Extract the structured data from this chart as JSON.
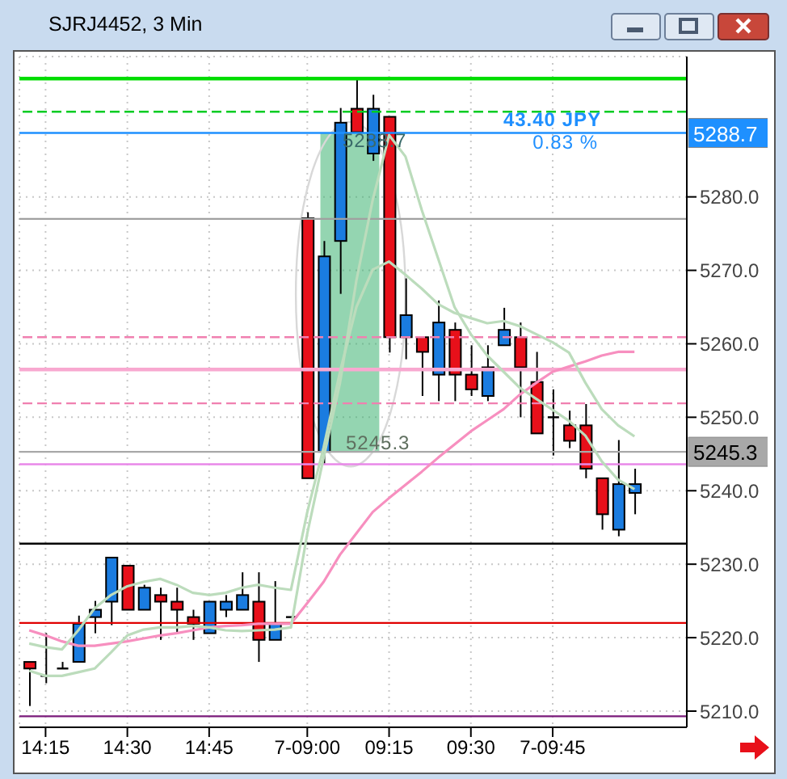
{
  "chart_data": {
    "type": "candlestick",
    "title": "SJRJ4452, 3 Min",
    "categories": [
      null,
      "14:15",
      null,
      null,
      null,
      null,
      "14:30",
      null,
      null,
      null,
      null,
      "14:45",
      null,
      null,
      null,
      null,
      null,
      "7-09:00",
      null,
      null,
      null,
      null,
      "09:15",
      null,
      null,
      null,
      null,
      "09:30",
      null,
      null,
      null,
      null,
      "7-09:45",
      null,
      null,
      null,
      null,
      null
    ],
    "ohlc": [
      [
        5216.7,
        5216.7,
        5210.7,
        5215.8
      ],
      [
        5214.8,
        5220.6,
        5213.8,
        5214.8
      ],
      [
        5215.8,
        5216.7,
        5215.8,
        5215.8
      ],
      [
        5216.7,
        5223.0,
        5216.7,
        5221.9
      ],
      [
        5222.8,
        5225.0,
        5220.6,
        5223.8
      ],
      [
        5224.9,
        5230.9,
        5221.7,
        5230.9
      ],
      [
        5229.8,
        5229.8,
        5223.8,
        5223.8
      ],
      [
        5223.8,
        5227.2,
        5223.8,
        5226.8
      ],
      [
        5225.8,
        5226.8,
        5219.7,
        5224.9
      ],
      [
        5224.9,
        5226.8,
        5220.6,
        5223.8
      ],
      [
        5222.8,
        5223.8,
        5219.7,
        5221.9
      ],
      [
        5220.6,
        5224.9,
        5220.6,
        5224.9
      ],
      [
        5223.8,
        5225.8,
        5222.8,
        5224.9
      ],
      [
        5223.8,
        5228.9,
        5223.8,
        5225.8
      ],
      [
        5224.9,
        5228.9,
        5216.7,
        5219.7
      ],
      [
        5219.7,
        5227.7,
        5219.7,
        5221.9
      ],
      [
        5222.8,
        5222.8,
        5222.8,
        5222.8
      ],
      [
        5277.1,
        5277.9,
        5241.7,
        5241.7
      ],
      [
        5245.3,
        5274.0,
        5243.7,
        5271.9
      ],
      [
        5274.0,
        5292.1,
        5266.8,
        5290.1
      ],
      [
        5292.0,
        5296.0,
        5288.8,
        5288.8
      ],
      [
        5285.9,
        5293.9,
        5284.9,
        5292.0
      ],
      [
        5290.9,
        5290.9,
        5258.8,
        5260.9
      ],
      [
        5260.9,
        5268.9,
        5257.9,
        5263.9
      ],
      [
        5260.9,
        5260.9,
        5252.9,
        5258.9
      ],
      [
        5255.8,
        5265.9,
        5252.2,
        5262.9
      ],
      [
        5261.9,
        5262.9,
        5252.2,
        5255.8
      ],
      [
        5255.8,
        5259.8,
        5252.9,
        5253.8
      ],
      [
        5252.9,
        5259.8,
        5252.2,
        5256.8
      ],
      [
        5259.8,
        5264.9,
        5259.8,
        5261.9
      ],
      [
        5260.9,
        5262.9,
        5250.0,
        5256.8
      ],
      [
        5254.8,
        5258.9,
        5247.8,
        5247.8
      ],
      [
        5250.0,
        5253.8,
        5244.8,
        5250.0
      ],
      [
        5248.9,
        5250.9,
        5245.8,
        5246.8
      ],
      [
        5248.9,
        5251.8,
        5241.7,
        5243.0
      ],
      [
        5241.7,
        5241.7,
        5234.7,
        5236.8
      ],
      [
        5234.7,
        5246.9,
        5233.8,
        5240.9
      ],
      [
        5239.7,
        5243.0,
        5236.8,
        5240.9
      ]
    ],
    "colors": [
      "#e8101a",
      "#000000",
      "#000000",
      "#1a7ce0",
      "#1a7ce0",
      "#1a7ce0",
      "#e8101a",
      "#1a7ce0",
      "#e8101a",
      "#e8101a",
      "#e8101a",
      "#1a7ce0",
      "#1a7ce0",
      "#1a7ce0",
      "#e8101a",
      "#1a7ce0",
      "#000000",
      "#e8101a",
      "#1a7ce0",
      "#1a7ce0",
      "#e8101a",
      "#1a7ce0",
      "#e8101a",
      "#1a7ce0",
      "#e8101a",
      "#1a7ce0",
      "#e8101a",
      "#e8101a",
      "#1a7ce0",
      "#1a7ce0",
      "#e8101a",
      "#e8101a",
      "#000000",
      "#e8101a",
      "#e8101a",
      "#e8101a",
      "#1a7ce0",
      "#1a7ce0"
    ],
    "series": [
      {
        "type": "line",
        "color": "#f78fbf",
        "values": [
          5221.0,
          5220.3,
          5219.5,
          5218.9,
          5218.9,
          5219.2,
          5219.5,
          5219.9,
          5220.3,
          5220.6,
          5221.0,
          5221.4,
          5221.6,
          5221.7,
          5221.9,
          5221.9,
          5221.9,
          5224.7,
          5227.6,
          5231.3,
          5234.2,
          5237.1,
          5239.0,
          5240.8,
          5242.6,
          5244.5,
          5246.3,
          5248.1,
          5249.6,
          5251.1,
          5253.1,
          5254.7,
          5256.2,
          5256.9,
          5257.6,
          5258.4,
          5258.9,
          5258.9
        ]
      },
      {
        "type": "line",
        "color": "#bcdcbc",
        "values": [
          5215.5,
          5214.8,
          5214.8,
          5215.3,
          5215.8,
          5218.0,
          5220.3,
          5221.1,
          5221.4,
          5221.4,
          5221.6,
          5221.4,
          5221.0,
          5220.9,
          5221.0,
          5221.1,
          5221.4,
          5234.2,
          5244.5,
          5254.7,
          5268.6,
          5279.6,
          5288.4,
          5285.5,
          5278.2,
          5271.6,
          5265.0,
          5261.3,
          5258.4,
          5256.2,
          5254.0,
          5252.5,
          5251.0,
          5249.5,
          5247.5,
          5244.0,
          5241.5,
          5240.2
        ]
      },
      {
        "type": "line",
        "color": "#bcdcbc",
        "values": [
          5219.2,
          5218.7,
          5218.4,
          5221.0,
          5224.0,
          5225.8,
          5227.0,
          5227.6,
          5228.0,
          5227.2,
          5226.1,
          5225.8,
          5226.1,
          5226.8,
          5227.2,
          5226.8,
          5226.5,
          5237.1,
          5245.9,
          5256.2,
          5265.0,
          5270.1,
          5271.2,
          5269.4,
          5267.5,
          5265.4,
          5264.2,
          5263.5,
          5262.8,
          5263.1,
          5262.4,
          5261.3,
          5260.2,
          5258.8,
          5254.7,
          5251.1,
          5248.9,
          5247.4
        ]
      }
    ],
    "ylim": [
      5207.8,
      5299.1
    ],
    "yticks": [
      {
        "value": 5210,
        "label": "5210.0"
      },
      {
        "value": 5220,
        "label": "5220.0"
      },
      {
        "value": 5230,
        "label": "5230.0"
      },
      {
        "value": 5240,
        "label": "5240.0"
      },
      {
        "value": 5250,
        "label": "5250.0"
      },
      {
        "value": 5260,
        "label": "5260.0"
      },
      {
        "value": 5270,
        "label": "5270.0"
      },
      {
        "value": 5280,
        "label": "5280.0"
      }
    ],
    "ref_lines": [
      {
        "axis": "y",
        "value": 5296.1,
        "color": "#00dd00",
        "line_style": "solid"
      },
      {
        "axis": "y",
        "value": 5291.6,
        "color": "#00cc22",
        "line_style": "dashed"
      },
      {
        "axis": "y",
        "value": 5288.7,
        "label": "5288.7",
        "color": "#1e90ff",
        "line_style": "solid"
      },
      {
        "axis": "y",
        "value": 5277.0,
        "color": "#a0a0a0",
        "line_style": "solid"
      },
      {
        "axis": "y",
        "value": 5260.9,
        "color": "#f080b0",
        "line_style": "dashed"
      },
      {
        "axis": "y",
        "value": 5256.5,
        "color": "#f8a8d0",
        "line_style": "solid"
      },
      {
        "axis": "y",
        "value": 5251.9,
        "color": "#f080b0",
        "line_style": "dashed"
      },
      {
        "axis": "y",
        "value": 5245.3,
        "label": "5245.3",
        "color": "#a8a8a8",
        "line_style": "solid"
      },
      {
        "axis": "y",
        "value": 5243.6,
        "color": "#e888e8",
        "line_style": "solid"
      },
      {
        "axis": "y",
        "value": 5232.8,
        "color": "#000000",
        "line_style": "solid"
      },
      {
        "axis": "y",
        "value": 5222.0,
        "color": "#e00000",
        "line_style": "solid"
      },
      {
        "axis": "y",
        "value": 5209.3,
        "color": "#7a1a7a",
        "line_style": "solid"
      }
    ],
    "annotations": [
      "43.40 JPY",
      "0.83 %",
      "5288.7",
      "5245.3"
    ],
    "grid": true
  }
}
